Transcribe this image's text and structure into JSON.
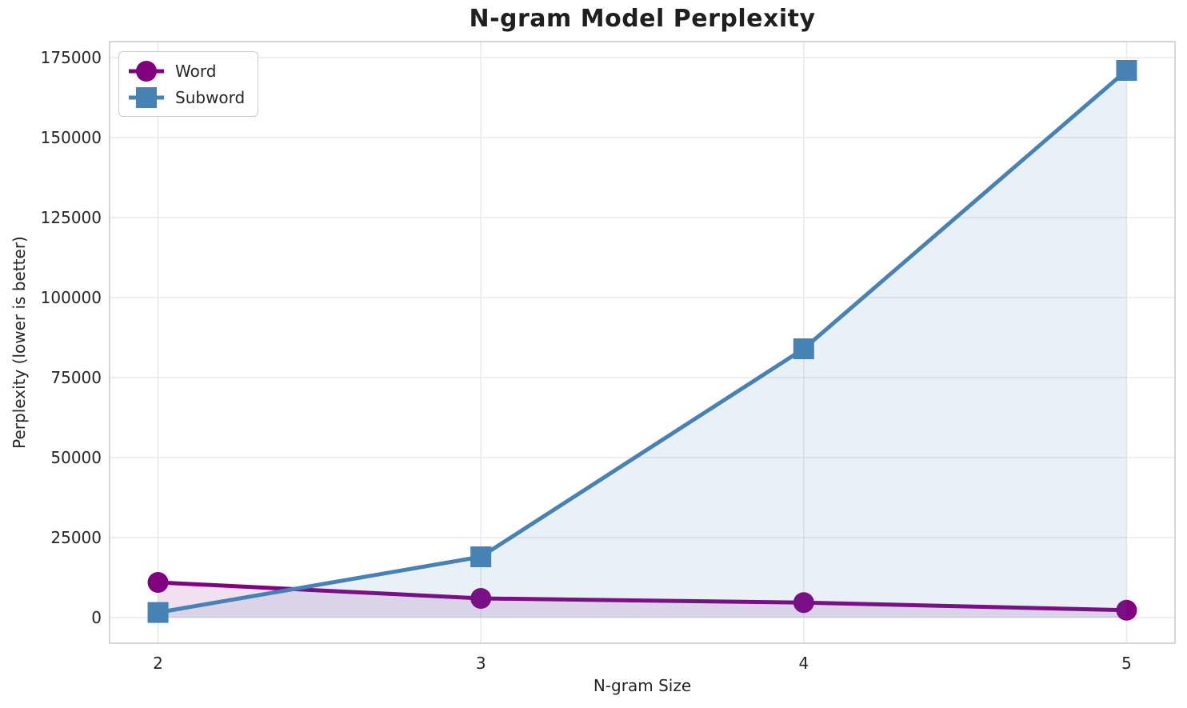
{
  "chart_data": {
    "type": "line",
    "title": "N-gram Model Perplexity",
    "xlabel": "N-gram Size",
    "ylabel": "Perplexity (lower is better)",
    "categories": [
      2,
      3,
      4,
      5
    ],
    "series": [
      {
        "name": "Word",
        "marker": "circle",
        "color": "#800080",
        "values": [
          11000,
          6000,
          4700,
          2300
        ]
      },
      {
        "name": "Subword",
        "marker": "square",
        "color": "#4682B4",
        "values": [
          1600,
          19000,
          84000,
          171000
        ]
      }
    ],
    "area_fill": true,
    "fill_opacity": 0.12,
    "yticks": [
      0,
      25000,
      50000,
      75000,
      100000,
      125000,
      150000,
      175000
    ],
    "ylim": [
      -8000,
      180000
    ],
    "xlim": [
      1.85,
      5.15
    ],
    "grid": true,
    "legend_position": "upper-left",
    "colors": {
      "grid": "#e9e9e9",
      "spine": "#cccccc",
      "tick_text": "#262626",
      "title_text": "#1f1f1f",
      "background": "#ffffff"
    }
  }
}
